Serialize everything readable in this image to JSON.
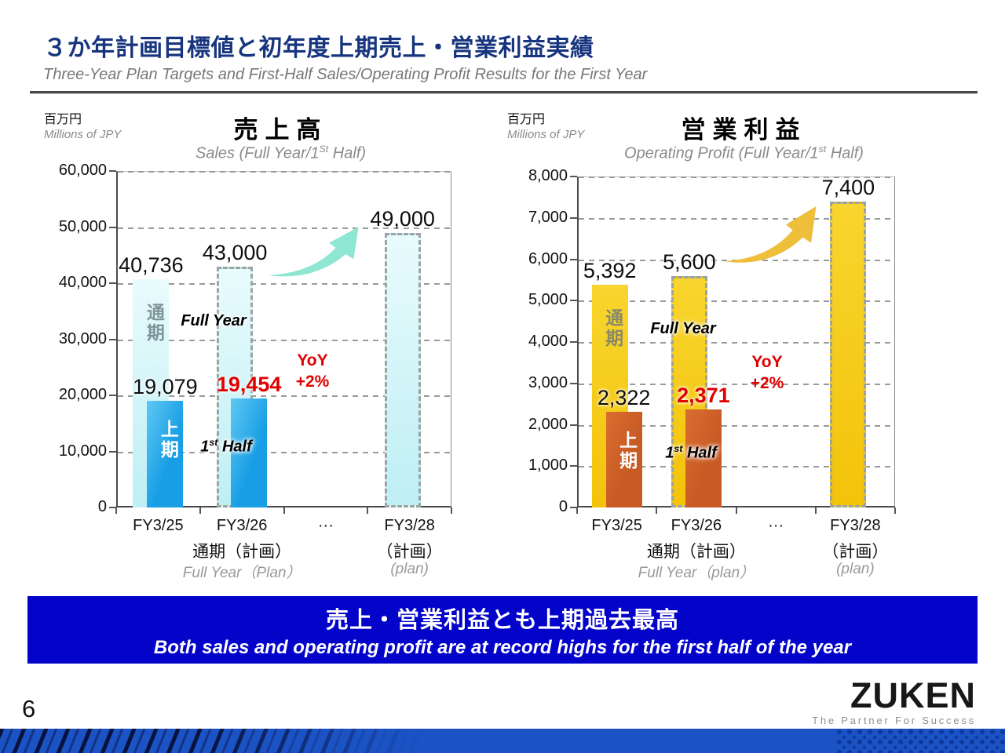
{
  "slide": {
    "title_jp": "３か年計画目標値と初年度上期売上・営業利益実績",
    "title_en": "Three-Year Plan Targets and First-Half Sales/Operating Profit Results for the First Year",
    "page_number": "6"
  },
  "banner": {
    "jp": "売上・営業利益とも上期過去最高",
    "en": "Both sales and operating profit are at record highs for the first half of the year"
  },
  "logo": {
    "name": "ZUKEN",
    "tagline": "The Partner For Success"
  },
  "chart_data": [
    {
      "type": "bar",
      "title": "売上高",
      "subtitle": "Sales (Full Year/1St Half)",
      "subtitle_parts": {
        "pre": "Sales (Full Year/1",
        "sup": "St",
        "post": " Half)"
      },
      "unit_jp": "百万円",
      "unit_en": "Millions of JPY",
      "ylabel": "百万円 Millions of JPY",
      "ylim": [
        0,
        60000
      ],
      "ytick_step": 10000,
      "y_ticks": [
        "60,000",
        "50,000",
        "40,000",
        "30,000",
        "20,000",
        "10,000",
        "0"
      ],
      "grid": true,
      "legend_position": "none",
      "categories": [
        "FY3/25",
        "FY3/26",
        "···",
        "FY3/28"
      ],
      "series": [
        {
          "name_jp": "通期",
          "name_en": "Full Year",
          "values": [
            40736,
            43000,
            null,
            49000
          ],
          "labels": [
            "40,736",
            "43,000",
            null,
            "49,000"
          ],
          "label_colors": [
            "black",
            "black",
            null,
            "black"
          ],
          "planned": [
            false,
            true,
            false,
            true
          ]
        },
        {
          "name_jp": "上期",
          "name_en": "1st Half",
          "values": [
            19079,
            19454,
            null,
            null
          ],
          "labels": [
            "19,079",
            "19,454",
            null,
            null
          ],
          "label_colors": [
            "black",
            "red",
            null,
            null
          ]
        }
      ],
      "annotations": {
        "full_tag": "通期",
        "half_tag": "上期",
        "full_label_parts": {
          "pre": "Full Year",
          "sup": "",
          "post": ""
        },
        "half_label_parts": {
          "pre": "1",
          "sup": "st",
          "post": " Half"
        },
        "yoy_title": "YoY",
        "yoy_value": "+2%"
      },
      "x_sub_labels": [
        {
          "index": 1,
          "jp": "通期（計画）",
          "en": "Full Year（Plan）"
        },
        {
          "index": 3,
          "jp": "（計画）",
          "en": "(plan)"
        }
      ],
      "colors": {
        "full": "#BEEFF4",
        "full_light": "#E9FBFD",
        "half": "#189EE5",
        "half_light": "#5FC8F3",
        "planned_border": "#9BA3A3",
        "arrow": "#8FE6D2",
        "full_tag": "#7F949B",
        "half_tag": "#FFFFFF",
        "value_red": "#E00000"
      }
    },
    {
      "type": "bar",
      "title": "営業利益",
      "subtitle": "Operating Profit (Full Year/1st Half)",
      "subtitle_parts": {
        "pre": "Operating Profit (Full Year/1",
        "sup": "st",
        "post": " Half)"
      },
      "unit_jp": "百万円",
      "unit_en": "Millions of JPY",
      "ylabel": "百万円 Millions of JPY",
      "ylim": [
        0,
        8000
      ],
      "ytick_step": 1000,
      "y_ticks": [
        "8,000",
        "7,000",
        "6,000",
        "5,000",
        "4,000",
        "3,000",
        "2,000",
        "1,000",
        "0"
      ],
      "grid": true,
      "legend_position": "none",
      "categories": [
        "FY3/25",
        "FY3/26",
        "···",
        "FY3/28"
      ],
      "series": [
        {
          "name_jp": "通期",
          "name_en": "Full Year",
          "values": [
            5392,
            5600,
            null,
            7400
          ],
          "labels": [
            "5,392",
            "5,600",
            null,
            "7,400"
          ],
          "label_colors": [
            "black",
            "black",
            null,
            "black"
          ],
          "planned": [
            false,
            true,
            false,
            true
          ]
        },
        {
          "name_jp": "上期",
          "name_en": "1st Half",
          "values": [
            2322,
            2371,
            null,
            null
          ],
          "labels": [
            "2,322",
            "2,371",
            null,
            null
          ],
          "label_colors": [
            "black",
            "red",
            null,
            null
          ]
        }
      ],
      "annotations": {
        "full_tag": "通期",
        "half_tag": "上期",
        "full_label_parts": {
          "pre": "Full Year",
          "sup": "",
          "post": ""
        },
        "half_label_parts": {
          "pre": "1",
          "sup": "st",
          "post": " Half"
        },
        "yoy_title": "YoY",
        "yoy_value": "+2%"
      },
      "x_sub_labels": [
        {
          "index": 1,
          "jp": "通期（計画）",
          "en": "Full Year（plan）"
        },
        {
          "index": 3,
          "jp": "（計画）",
          "en": "(plan)"
        }
      ],
      "colors": {
        "full": "#F3C30A",
        "full_light": "#F8D52E",
        "half": "#C85A24",
        "half_light": "#D96E30",
        "planned_border": "#9BA3A3",
        "arrow": "#EFBE3A",
        "full_tag": "#8A8A6A",
        "half_tag": "#FFFFFF",
        "value_red": "#E00000"
      }
    }
  ]
}
